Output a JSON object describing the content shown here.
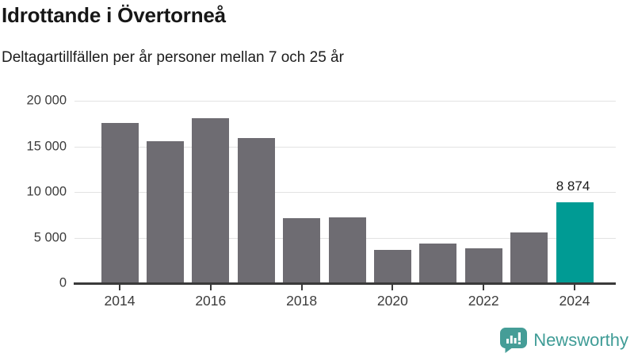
{
  "header": {
    "title": "Idrottande i Övertorneå",
    "subtitle": "Deltagartillfällen per år personer mellan 7 och 25 år"
  },
  "chart_data": {
    "type": "bar",
    "title": "Idrottande i Övertorneå",
    "subtitle": "Deltagartillfällen per år personer mellan 7 och 25 år",
    "categories": [
      "2014",
      "2015",
      "2016",
      "2017",
      "2018",
      "2019",
      "2020",
      "2021",
      "2022",
      "2023",
      "2024"
    ],
    "values": [
      17600,
      15600,
      18100,
      15900,
      7100,
      7200,
      3650,
      4350,
      3800,
      5550,
      8874
    ],
    "highlight_index": 10,
    "highlight_label": "8 874",
    "ylim": [
      0,
      20000
    ],
    "y_ticks": [
      {
        "value": 0,
        "label": "0"
      },
      {
        "value": 5000,
        "label": "5 000"
      },
      {
        "value": 10000,
        "label": "10 000"
      },
      {
        "value": 15000,
        "label": "15 000"
      },
      {
        "value": 20000,
        "label": "20 000"
      }
    ],
    "x_ticks": [
      {
        "category": "2014",
        "label": "2014"
      },
      {
        "category": "2016",
        "label": "2016"
      },
      {
        "category": "2018",
        "label": "2018"
      },
      {
        "category": "2020",
        "label": "2020"
      },
      {
        "category": "2022",
        "label": "2022"
      },
      {
        "category": "2024",
        "label": "2024"
      }
    ],
    "grid": true,
    "legend": "none",
    "xlabel": "",
    "ylabel": "",
    "colors": {
      "bar_default": "#6e6c72",
      "bar_highlight": "#009b94"
    }
  },
  "footer": {
    "brand": "Newsworthy",
    "logo_icon": "bar-chart-speech-bubble",
    "brand_color": "#3f9c96"
  }
}
